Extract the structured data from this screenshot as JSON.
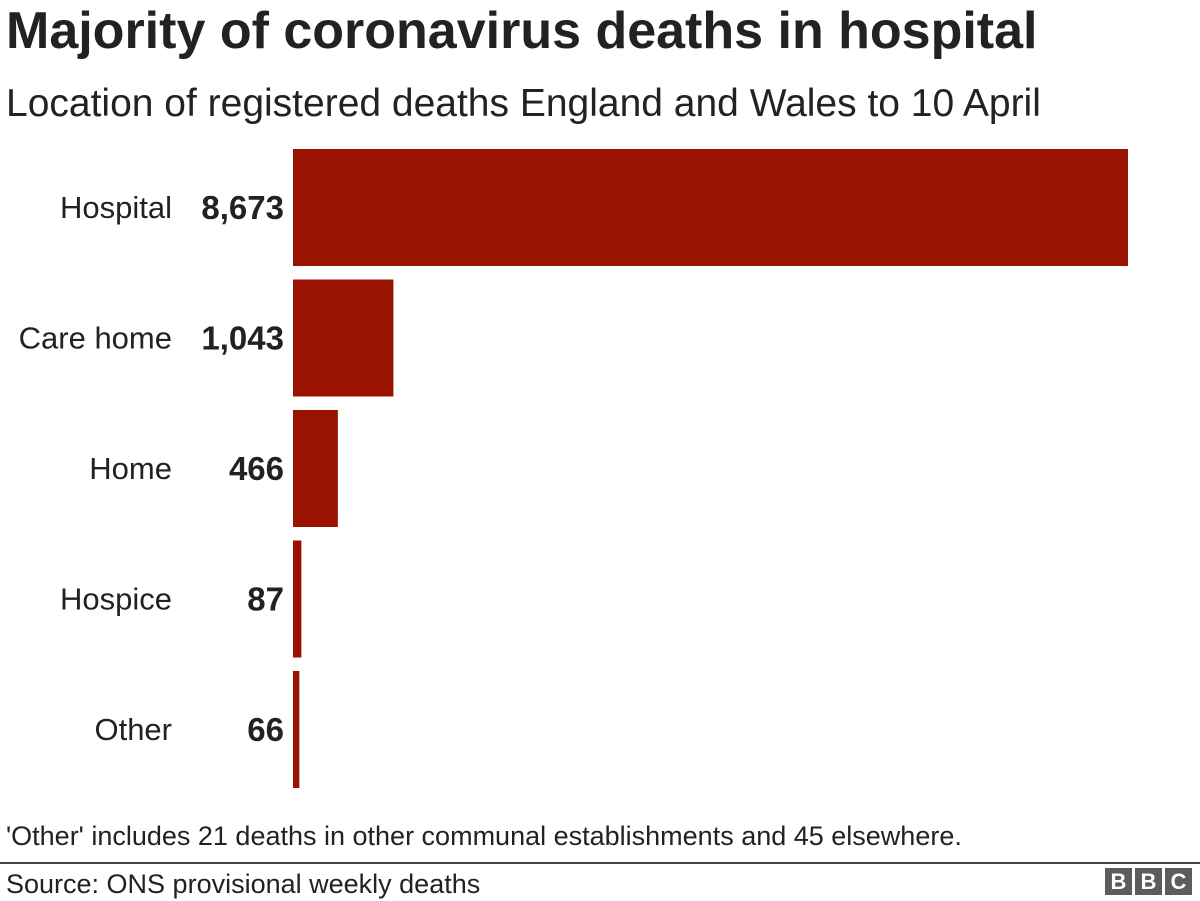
{
  "header": {
    "title": "Majority of coronavirus deaths in hospital",
    "subtitle": "Location of registered deaths England and Wales to 10 April"
  },
  "footer": {
    "note": "'Other' includes 21 deaths in other communal establishments and 45 elsewhere.",
    "source": "Source: ONS provisional weekly deaths",
    "logo_letters": [
      "B",
      "B",
      "C"
    ]
  },
  "colors": {
    "bar": "#9a1200",
    "text": "#222222"
  },
  "chart_data": {
    "type": "bar",
    "orientation": "horizontal",
    "title": "Majority of coronavirus deaths in hospital",
    "subtitle": "Location of registered deaths England and Wales to 10 April",
    "categories": [
      "Hospital",
      "Care home",
      "Home",
      "Hospice",
      "Other"
    ],
    "values": [
      8673,
      1043,
      466,
      87,
      66
    ],
    "value_labels": [
      "8,673",
      "1,043",
      "466",
      "87",
      "66"
    ],
    "xlim": [
      0,
      8673
    ],
    "grid": false,
    "legend": "none"
  }
}
